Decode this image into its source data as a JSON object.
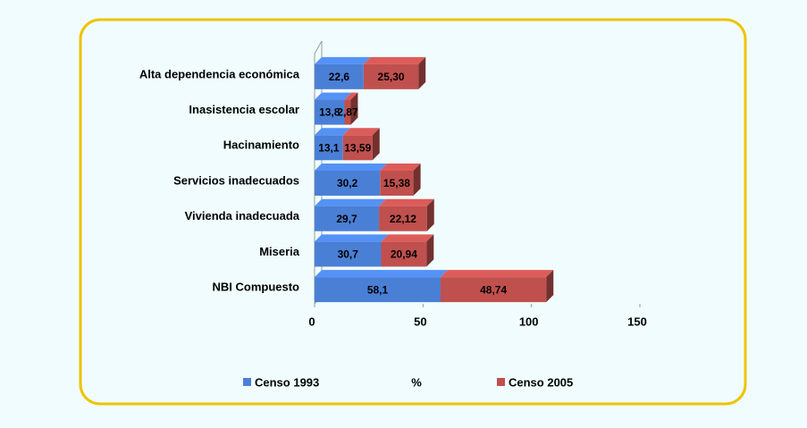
{
  "chart_data": {
    "type": "stacked-bar-horizontal",
    "categories": [
      "Alta dependencia económica",
      "Inasistencia escolar",
      "Hacinamiento",
      "Servicios inadecuados",
      "Vivienda inadecuada",
      "Miseria",
      "NBI Compuesto"
    ],
    "series": [
      {
        "name": "Censo 1993",
        "color": "#4a7fd6",
        "values": [
          22.6,
          13.8,
          13.1,
          30.2,
          29.7,
          30.7,
          58.1
        ],
        "value_labels": [
          "22,6",
          "13,8",
          "13,1",
          "30,2",
          "29,7",
          "30,7",
          "58,1"
        ]
      },
      {
        "name": "Censo 2005",
        "color": "#c0504d",
        "values": [
          25.3,
          2.87,
          13.59,
          15.38,
          22.12,
          20.94,
          48.74
        ],
        "value_labels": [
          "25,30",
          "2,87",
          "13,59",
          "15,38",
          "22,12",
          "20,94",
          "48,74"
        ]
      }
    ],
    "x_label": "%",
    "xlim": [
      0,
      150
    ],
    "xticks": [
      0,
      50,
      100,
      150
    ]
  }
}
